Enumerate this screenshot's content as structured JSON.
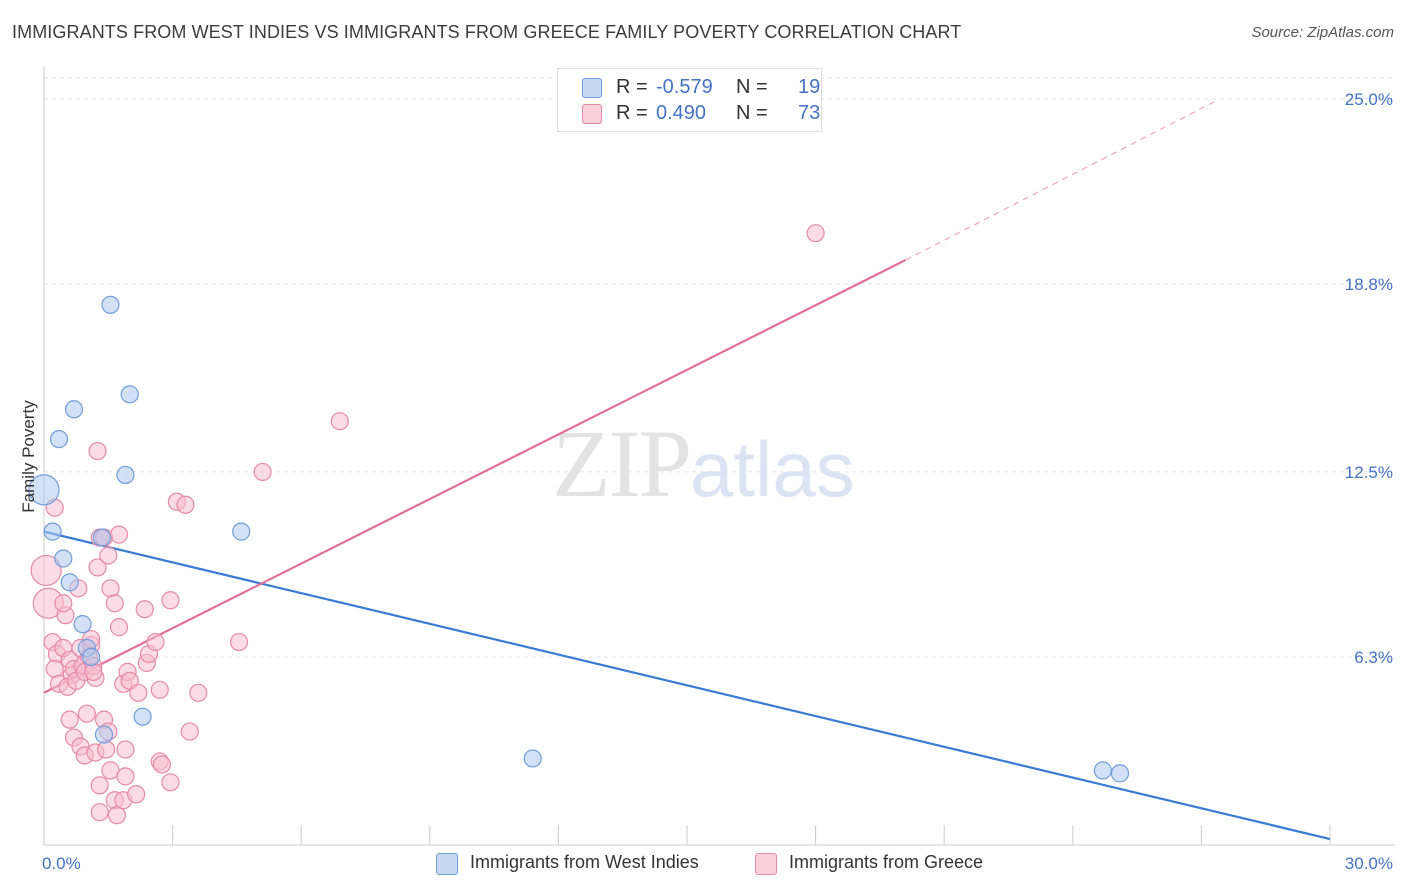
{
  "header": {
    "title": "IMMIGRANTS FROM WEST INDIES VS IMMIGRANTS FROM GREECE FAMILY POVERTY CORRELATION CHART",
    "source": "Source: ZipAtlas.com"
  },
  "watermark": {
    "zip": "ZIP",
    "atlas": "atlas"
  },
  "legend": {
    "r_label": "R =",
    "n_label": "N =",
    "rows": [
      {
        "r": "-0.579",
        "n": "19"
      },
      {
        "r": "0.490",
        "n": "73"
      }
    ]
  },
  "colors": {
    "blue_fill": "#aec8ef",
    "blue_stroke": "#6f9edb",
    "blue_line": "#3a7bd5",
    "pink_fill": "#f7bed0",
    "pink_stroke": "#e58aa9",
    "pink_line": "#e2709a",
    "grid": "#e3e3e3",
    "axis": "#cccccc"
  },
  "chart_data": {
    "type": "scatter",
    "title": "IMMIGRANTS FROM WEST INDIES VS IMMIGRANTS FROM GREECE FAMILY POVERTY CORRELATION CHART",
    "xlabel": "",
    "ylabel": "Family Poverty",
    "xlim": [
      0,
      30
    ],
    "ylim": [
      0,
      25.9
    ],
    "x_tick_labels": [
      "0.0%",
      "30.0%"
    ],
    "y_ticks": [
      6.3,
      12.5,
      18.8,
      25.0
    ],
    "y_tick_labels": [
      "6.3%",
      "12.5%",
      "18.8%",
      "25.0%"
    ],
    "grid": true,
    "series": [
      {
        "name": "Immigrants from West Indies",
        "color": "#6f9edb",
        "r": -0.579,
        "n": 19,
        "points": [
          {
            "x": 0.0,
            "y": 11.9,
            "big": true
          },
          {
            "x": 0.2,
            "y": 10.5
          },
          {
            "x": 0.45,
            "y": 9.6
          },
          {
            "x": 0.6,
            "y": 8.8
          },
          {
            "x": 0.35,
            "y": 13.6
          },
          {
            "x": 0.7,
            "y": 14.6
          },
          {
            "x": 1.55,
            "y": 18.1
          },
          {
            "x": 2.0,
            "y": 15.1
          },
          {
            "x": 1.9,
            "y": 12.4
          },
          {
            "x": 1.35,
            "y": 10.3
          },
          {
            "x": 0.9,
            "y": 7.4
          },
          {
            "x": 1.0,
            "y": 6.6
          },
          {
            "x": 1.1,
            "y": 6.3
          },
          {
            "x": 2.3,
            "y": 4.3
          },
          {
            "x": 1.4,
            "y": 3.7
          },
          {
            "x": 4.6,
            "y": 10.5
          },
          {
            "x": 11.4,
            "y": 2.9
          },
          {
            "x": 24.7,
            "y": 2.5
          },
          {
            "x": 25.1,
            "y": 2.4
          }
        ],
        "trend": {
          "x1": 0.0,
          "y1": 10.5,
          "x2": 30.0,
          "y2": 0.2
        }
      },
      {
        "name": "Immigrants from Greece",
        "color": "#e58aa9",
        "r": 0.49,
        "n": 73,
        "points": [
          {
            "x": 0.05,
            "y": 9.2,
            "big": true
          },
          {
            "x": 0.1,
            "y": 8.1,
            "big": true
          },
          {
            "x": 0.25,
            "y": 11.3
          },
          {
            "x": 0.2,
            "y": 6.8
          },
          {
            "x": 0.3,
            "y": 6.4
          },
          {
            "x": 0.25,
            "y": 5.9
          },
          {
            "x": 0.35,
            "y": 5.4
          },
          {
            "x": 0.45,
            "y": 6.6
          },
          {
            "x": 0.5,
            "y": 7.7
          },
          {
            "x": 0.45,
            "y": 8.1
          },
          {
            "x": 0.6,
            "y": 6.2
          },
          {
            "x": 0.65,
            "y": 5.7
          },
          {
            "x": 0.55,
            "y": 5.3
          },
          {
            "x": 0.7,
            "y": 5.9
          },
          {
            "x": 0.8,
            "y": 8.6
          },
          {
            "x": 0.85,
            "y": 6.6
          },
          {
            "x": 0.9,
            "y": 6.0
          },
          {
            "x": 0.75,
            "y": 5.5
          },
          {
            "x": 0.95,
            "y": 5.8
          },
          {
            "x": 1.05,
            "y": 6.3
          },
          {
            "x": 1.1,
            "y": 6.7
          },
          {
            "x": 1.2,
            "y": 5.6
          },
          {
            "x": 1.15,
            "y": 6.0
          },
          {
            "x": 1.1,
            "y": 6.9
          },
          {
            "x": 1.15,
            "y": 5.8
          },
          {
            "x": 0.6,
            "y": 4.2
          },
          {
            "x": 0.7,
            "y": 3.6
          },
          {
            "x": 0.85,
            "y": 3.3
          },
          {
            "x": 0.95,
            "y": 3.0
          },
          {
            "x": 1.0,
            "y": 4.4
          },
          {
            "x": 1.2,
            "y": 3.1
          },
          {
            "x": 1.4,
            "y": 4.2
          },
          {
            "x": 1.5,
            "y": 3.8
          },
          {
            "x": 1.45,
            "y": 3.2
          },
          {
            "x": 1.3,
            "y": 2.0
          },
          {
            "x": 1.3,
            "y": 1.1
          },
          {
            "x": 1.55,
            "y": 2.5
          },
          {
            "x": 1.65,
            "y": 1.5
          },
          {
            "x": 1.7,
            "y": 1.0
          },
          {
            "x": 1.85,
            "y": 1.5
          },
          {
            "x": 1.9,
            "y": 2.3
          },
          {
            "x": 1.9,
            "y": 3.2
          },
          {
            "x": 2.15,
            "y": 1.7
          },
          {
            "x": 1.25,
            "y": 9.3
          },
          {
            "x": 1.3,
            "y": 10.3
          },
          {
            "x": 1.4,
            "y": 10.3
          },
          {
            "x": 1.5,
            "y": 9.7
          },
          {
            "x": 1.55,
            "y": 8.6
          },
          {
            "x": 1.65,
            "y": 8.1
          },
          {
            "x": 1.75,
            "y": 10.4
          },
          {
            "x": 1.75,
            "y": 7.3
          },
          {
            "x": 1.85,
            "y": 5.4
          },
          {
            "x": 1.95,
            "y": 5.8
          },
          {
            "x": 2.0,
            "y": 5.5
          },
          {
            "x": 2.2,
            "y": 5.1
          },
          {
            "x": 2.35,
            "y": 7.9
          },
          {
            "x": 2.4,
            "y": 6.1
          },
          {
            "x": 2.45,
            "y": 6.4
          },
          {
            "x": 2.6,
            "y": 6.8
          },
          {
            "x": 2.7,
            "y": 5.2
          },
          {
            "x": 2.7,
            "y": 2.8
          },
          {
            "x": 2.75,
            "y": 2.7
          },
          {
            "x": 2.95,
            "y": 2.1
          },
          {
            "x": 2.95,
            "y": 8.2
          },
          {
            "x": 3.1,
            "y": 11.5
          },
          {
            "x": 3.3,
            "y": 11.4
          },
          {
            "x": 3.4,
            "y": 3.8
          },
          {
            "x": 3.6,
            "y": 5.1
          },
          {
            "x": 1.25,
            "y": 13.2
          },
          {
            "x": 4.55,
            "y": 6.8
          },
          {
            "x": 5.1,
            "y": 12.5
          },
          {
            "x": 6.9,
            "y": 14.2
          },
          {
            "x": 18.0,
            "y": 20.5
          }
        ],
        "trend": {
          "x1": 0.0,
          "y1": 5.1,
          "x2": 20.1,
          "y2": 19.6
        },
        "trend_extension": {
          "x1": 20.1,
          "y1": 19.6,
          "x2": 27.3,
          "y2": 24.9
        }
      }
    ]
  }
}
